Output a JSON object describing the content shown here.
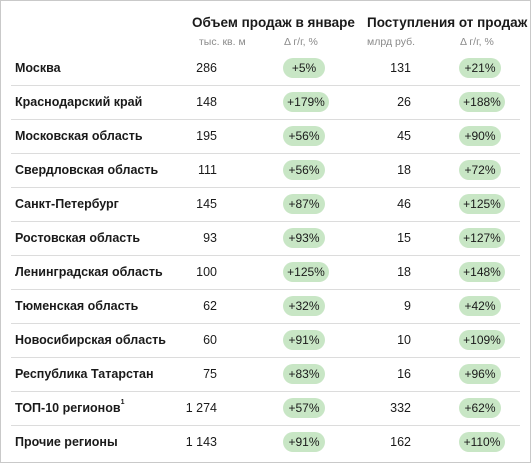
{
  "header": {
    "volume_title": "Объем продаж в январе",
    "volume_unit": "тыс. кв. м",
    "volume_change": "Δ г/г, %",
    "revenue_title": "Поступления от продаж",
    "revenue_unit": "млрд руб.",
    "revenue_change": "Δ г/г, %"
  },
  "rows": [
    {
      "region": "Москва",
      "volume": "286",
      "volume_change": "+5%",
      "revenue": "131",
      "revenue_change": "+21%"
    },
    {
      "region": "Краснодарский край",
      "volume": "148",
      "volume_change": "+179%",
      "revenue": "26",
      "revenue_change": "+188%"
    },
    {
      "region": "Московская область",
      "volume": "195",
      "volume_change": "+56%",
      "revenue": "45",
      "revenue_change": "+90%"
    },
    {
      "region": "Свердловская область",
      "volume": "111",
      "volume_change": "+56%",
      "revenue": "18",
      "revenue_change": "+72%"
    },
    {
      "region": "Санкт-Петербург",
      "volume": "145",
      "volume_change": "+87%",
      "revenue": "46",
      "revenue_change": "+125%"
    },
    {
      "region": "Ростовская область",
      "volume": "93",
      "volume_change": "+93%",
      "revenue": "15",
      "revenue_change": "+127%"
    },
    {
      "region": "Ленинградская область",
      "volume": "100",
      "volume_change": "+125%",
      "revenue": "18",
      "revenue_change": "+148%"
    },
    {
      "region": "Тюменская область",
      "volume": "62",
      "volume_change": "+32%",
      "revenue": "9",
      "revenue_change": "+42%"
    },
    {
      "region": "Новосибирская область",
      "volume": "60",
      "volume_change": "+91%",
      "revenue": "10",
      "revenue_change": "+109%"
    },
    {
      "region": "Республика Татарстан",
      "volume": "75",
      "volume_change": "+83%",
      "revenue": "16",
      "revenue_change": "+96%"
    },
    {
      "region": "ТОП-10 регионов",
      "footnote": "1",
      "volume": "1 274",
      "volume_change": "+57%",
      "revenue": "332",
      "revenue_change": "+62%"
    },
    {
      "region": "Прочие регионы",
      "volume": "1 143",
      "volume_change": "+91%",
      "revenue": "162",
      "revenue_change": "+110%"
    }
  ],
  "colors": {
    "pill_bg": "#c8e6c5",
    "separator": "#dcdcdc"
  }
}
